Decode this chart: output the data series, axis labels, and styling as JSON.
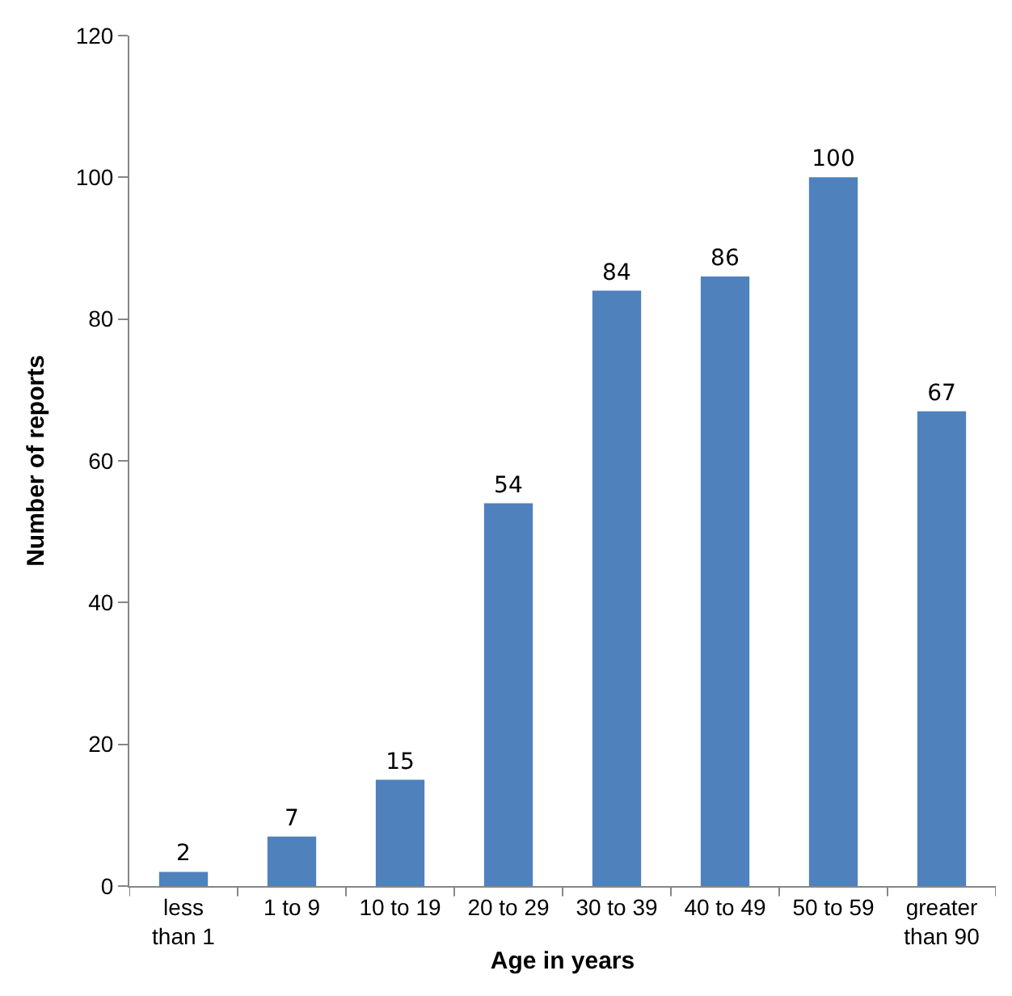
{
  "chart_data": {
    "type": "bar",
    "xlabel": "Age in years",
    "ylabel": "Number of reports",
    "categories": [
      "less than 1",
      "1 to 9",
      "10 to 19",
      "20 to 29",
      "30 to 39",
      "40 to 49",
      "50 to 59",
      "greater than 90"
    ],
    "values": [
      2,
      7,
      15,
      54,
      84,
      86,
      100,
      67
    ],
    "color": "#4f81bd",
    "ylim": [
      0,
      120
    ],
    "yticks": [
      0,
      20,
      40,
      60,
      80,
      100,
      120
    ],
    "legend": false,
    "data_labels": true
  }
}
